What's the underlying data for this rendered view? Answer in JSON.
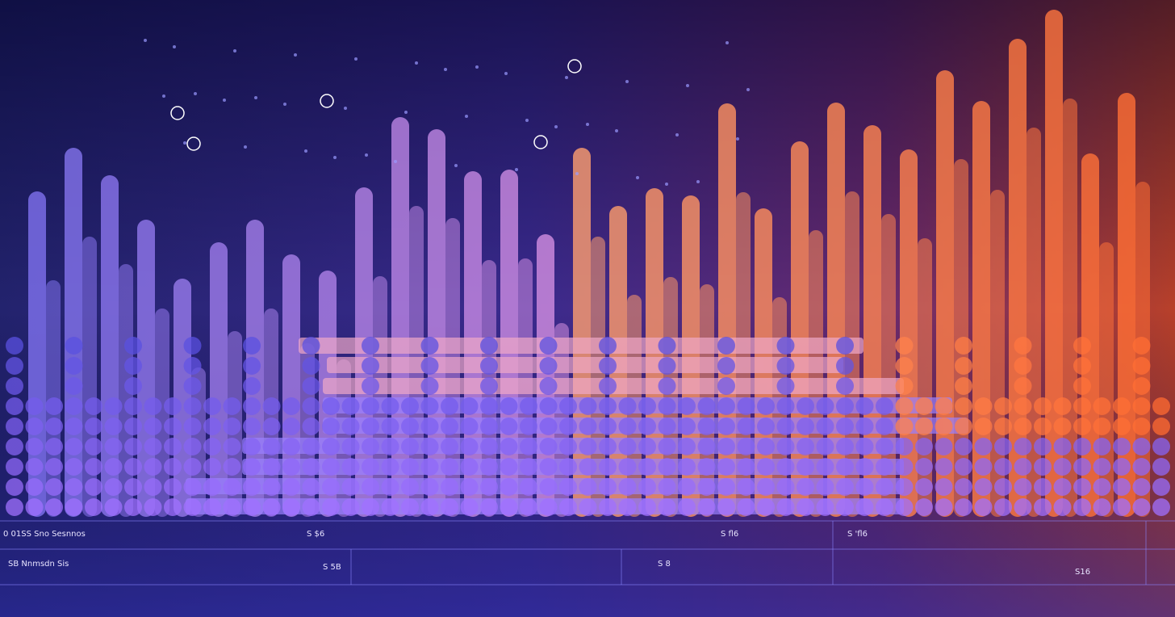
{
  "table": {
    "rows": [
      [
        "0 01SS Sno Sesnnos",
        "S $6",
        "S fl6",
        "S 'fl6"
      ],
      [
        "SB Nnmsdn Sis",
        "S 5B",
        "S 8",
        "S16"
      ]
    ]
  }
}
